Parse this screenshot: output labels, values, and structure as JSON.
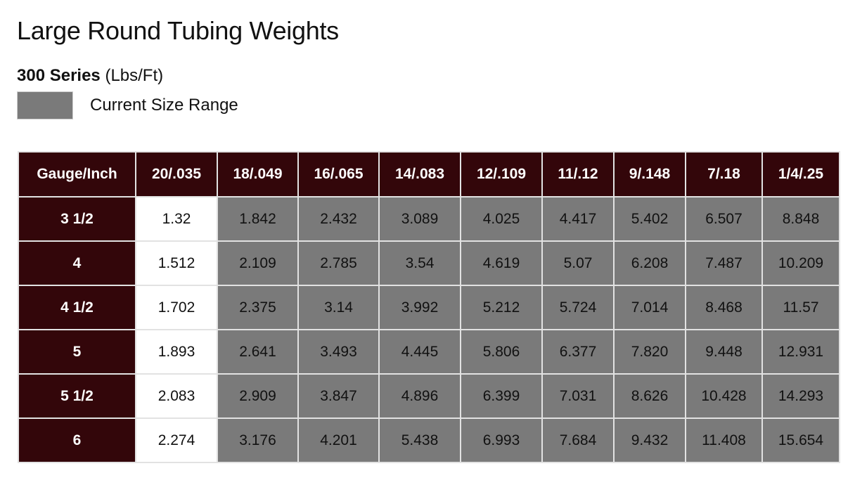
{
  "title": "Large Round Tubing Weights",
  "subtitle": {
    "series": "300 Series",
    "unit": "(Lbs/Ft)"
  },
  "legend": {
    "label": "Current Size Range",
    "swatch_color": "#7a7a7a"
  },
  "colors": {
    "header_bg": "#33060a",
    "range_bg": "#7a7a7a",
    "outside_bg": "#ffffff"
  },
  "table": {
    "corner_header": "Gauge/Inch",
    "columns": [
      "20/.035",
      "18/.049",
      "16/.065",
      "14/.083",
      "12/.109",
      "11/.12",
      "9/.148",
      "7/.18",
      "1/4/.25"
    ],
    "in_range_from_column": 1,
    "rows": [
      {
        "label": "3 1/2",
        "values": [
          "1.32",
          "1.842",
          "2.432",
          "3.089",
          "4.025",
          "4.417",
          "5.402",
          "6.507",
          "8.848"
        ]
      },
      {
        "label": "4",
        "values": [
          "1.512",
          "2.109",
          "2.785",
          "3.54",
          "4.619",
          "5.07",
          "6.208",
          "7.487",
          "10.209"
        ]
      },
      {
        "label": "4 1/2",
        "values": [
          "1.702",
          "2.375",
          "3.14",
          "3.992",
          "5.212",
          "5.724",
          "7.014",
          "8.468",
          "11.57"
        ]
      },
      {
        "label": "5",
        "values": [
          "1.893",
          "2.641",
          "3.493",
          "4.445",
          "5.806",
          "6.377",
          "7.820",
          "9.448",
          "12.931"
        ]
      },
      {
        "label": "5 1/2",
        "values": [
          "2.083",
          "2.909",
          "3.847",
          "4.896",
          "6.399",
          "7.031",
          "8.626",
          "10.428",
          "14.293"
        ]
      },
      {
        "label": "6",
        "values": [
          "2.274",
          "3.176",
          "4.201",
          "5.438",
          "6.993",
          "7.684",
          "9.432",
          "11.408",
          "15.654"
        ]
      }
    ]
  }
}
